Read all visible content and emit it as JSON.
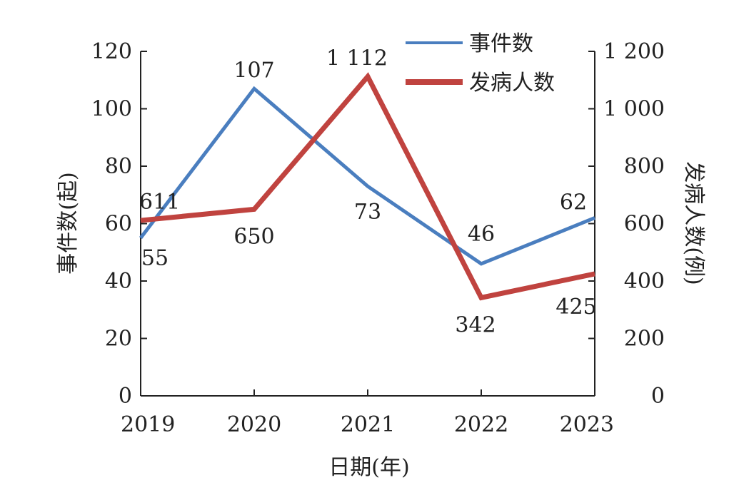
{
  "chart_data": {
    "type": "line",
    "x": [
      "2019",
      "2020",
      "2021",
      "2022",
      "2023"
    ],
    "xlabel": "日期(年)",
    "ylabel_left": "事件数(起)",
    "ylabel_right": "发病人数(例)",
    "ylim_left": [
      0,
      120
    ],
    "ylim_right": [
      0,
      1200
    ],
    "yticks_left": [
      "0",
      "20",
      "40",
      "60",
      "80",
      "100",
      "120"
    ],
    "yticks_right": [
      "0",
      "200",
      "400",
      "600",
      "800",
      "1 000",
      "1 200"
    ],
    "grid": false,
    "legend_position": "top-right",
    "series": [
      {
        "name": "事件数",
        "axis": "left",
        "color": "#4a7ebf",
        "values": [
          55,
          107,
          73,
          46,
          62
        ],
        "labels": [
          "55",
          "107",
          "73",
          "46",
          "62"
        ]
      },
      {
        "name": "发病人数",
        "axis": "right",
        "color": "#c0433f",
        "values": [
          611,
          650,
          1112,
          342,
          425
        ],
        "labels": [
          "611",
          "650",
          "1 112",
          "342",
          "425"
        ]
      }
    ]
  }
}
